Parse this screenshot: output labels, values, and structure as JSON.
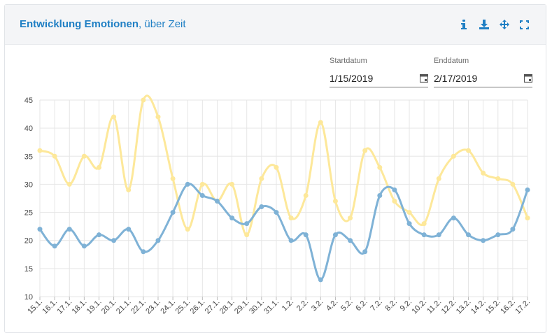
{
  "header": {
    "title_bold": "Entwicklung Emotionen",
    "title_rest": ", über Zeit",
    "icons": [
      "info-icon",
      "download-icon",
      "move-icon",
      "fullscreen-icon"
    ],
    "accent_color": "#1f7fc4"
  },
  "filters": {
    "start": {
      "label": "Startdatum",
      "value": "1/15/2019"
    },
    "end": {
      "label": "Enddatum",
      "value": "2/17/2019"
    }
  },
  "chart_data": {
    "type": "line",
    "categories": [
      "15.1.",
      "16.1.",
      "17.1.",
      "18.1.",
      "19.1.",
      "20.1.",
      "21.1.",
      "22.1.",
      "23.1.",
      "24.1.",
      "25.1.",
      "26.1.",
      "27.1.",
      "28.1.",
      "29.1.",
      "30.1.",
      "31.1.",
      "1.2.",
      "2.2.",
      "3.2.",
      "4.2.",
      "5.2.",
      "6.2.",
      "7.2.",
      "8.2.",
      "9.2.",
      "10.2.",
      "11.2.",
      "12.2.",
      "13.2.",
      "14.2.",
      "15.2.",
      "16.2.",
      "17.2."
    ],
    "ylim": [
      10,
      45
    ],
    "yticks": [
      10,
      15,
      20,
      25,
      30,
      35,
      40,
      45
    ],
    "grid": true,
    "series": [
      {
        "color": "#fde89a",
        "values": [
          36,
          35,
          30,
          35,
          33,
          42,
          29,
          45,
          42,
          31,
          22,
          30,
          27,
          30,
          21,
          31,
          33,
          24,
          28,
          41,
          27,
          24,
          36,
          33,
          27,
          25,
          23,
          31,
          35,
          36,
          32,
          31,
          30,
          24
        ]
      },
      {
        "color": "#7fb2d6",
        "values": [
          22,
          19,
          22,
          19,
          21,
          20,
          22,
          18,
          20,
          25,
          30,
          28,
          27,
          24,
          23,
          26,
          25,
          20,
          21,
          13,
          21,
          20,
          18,
          28,
          29,
          23,
          21,
          21,
          24,
          21,
          20,
          21,
          22,
          29
        ]
      }
    ]
  }
}
